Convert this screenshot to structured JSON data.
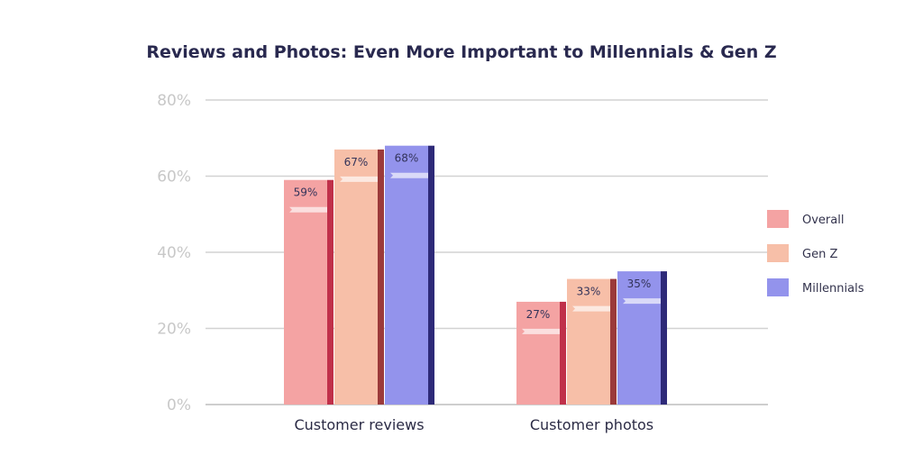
{
  "chart_data": {
    "type": "bar",
    "title": "Reviews and Photos: Even More Important to Millennials & Gen Z",
    "categories": [
      "Customer reviews",
      "Customer photos"
    ],
    "series": [
      {
        "name": "Overall",
        "values": [
          59,
          27
        ],
        "labels": [
          "59%",
          "27%"
        ],
        "color": "#f4a3a3",
        "edge_color": "#c0304a"
      },
      {
        "name": "Gen Z",
        "values": [
          67,
          33
        ],
        "labels": [
          "67%",
          "33%"
        ],
        "color": "#f7bfa8",
        "edge_color": "#9b3a3a"
      },
      {
        "name": "Millennials",
        "values": [
          68,
          35
        ],
        "labels": [
          "68%",
          "35%"
        ],
        "color": "#9393ec",
        "edge_color": "#2e2a78"
      }
    ],
    "ylim": [
      0,
      80
    ],
    "yticks": [
      0,
      20,
      40,
      60,
      80
    ],
    "ytick_labels": [
      "0%",
      "20%",
      "40%",
      "60%",
      "80%"
    ],
    "xlabel": "",
    "ylabel": "",
    "grid": true,
    "legend_position": "right"
  }
}
